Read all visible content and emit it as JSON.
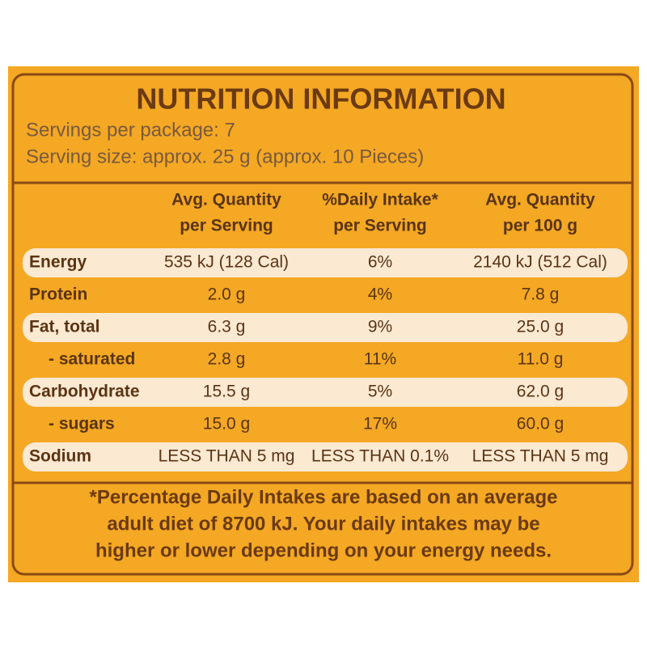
{
  "header": {
    "title": "NUTRITION INFORMATION",
    "servings_per_package": "Servings per package: 7",
    "serving_size": "Serving size: approx. 25 g (approx. 10 Pieces)"
  },
  "table": {
    "columns": [
      [
        "Avg. Quantity",
        "per Serving"
      ],
      [
        "%Daily Intake*",
        "per Serving"
      ],
      [
        "Avg. Quantity",
        "per 100 g"
      ]
    ],
    "rows": [
      [
        "Energy",
        "535 kJ (128 Cal)",
        "6%",
        "2140 kJ (512 Cal)"
      ],
      [
        "Protein",
        "2.0 g",
        "4%",
        "7.8 g"
      ],
      [
        "Fat, total",
        "6.3 g",
        "9%",
        "25.0 g"
      ],
      [
        "- saturated",
        "2.8 g",
        "11%",
        "11.0 g"
      ],
      [
        "Carbohydrate",
        "15.5 g",
        "5%",
        "62.0 g"
      ],
      [
        "- sugars",
        "15.0 g",
        "17%",
        "60.0 g"
      ],
      [
        "Sodium",
        "LESS THAN 5 mg",
        "LESS THAN 0.1%",
        "LESS THAN 5 mg"
      ]
    ]
  },
  "footnote": [
    "*Percentage Daily Intakes are based on an average",
    "adult diet of 8700 kJ. Your daily intakes may be",
    "higher or lower depending on your energy needs."
  ]
}
